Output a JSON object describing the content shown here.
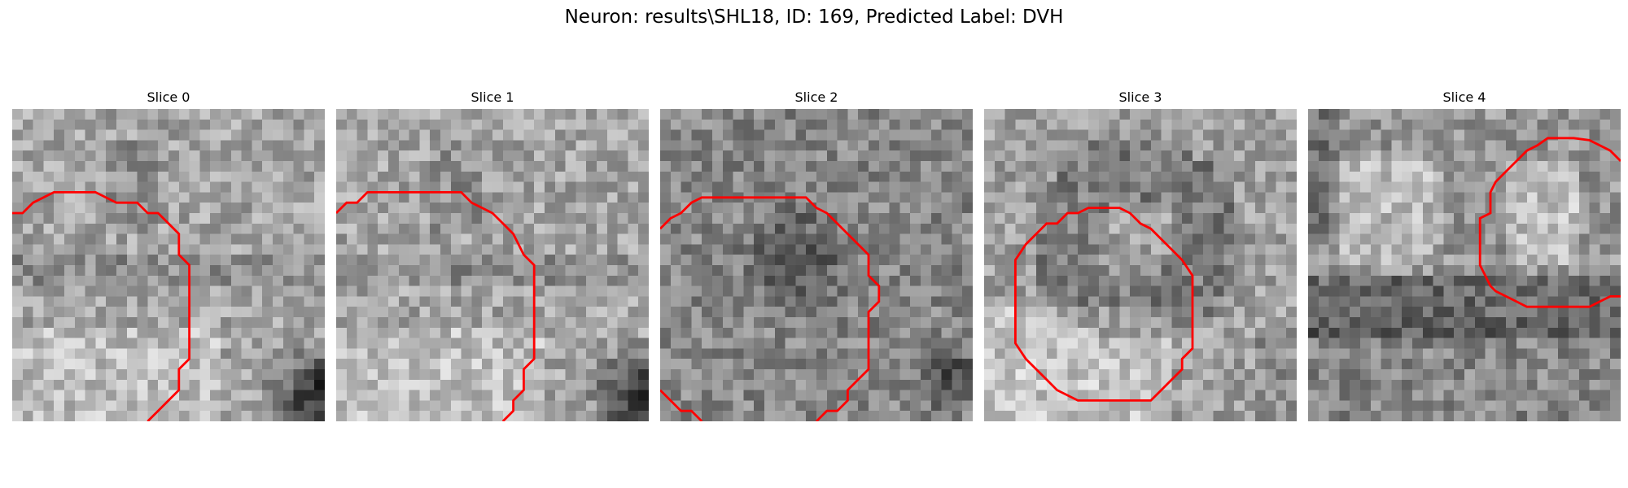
{
  "figure": {
    "title": "Neuron: results\\SHL18, ID: 169, Predicted Label: DVH"
  },
  "colors": {
    "contour": "#ff0000",
    "background": "#ffffff"
  },
  "panels": [
    {
      "title": "Slice 0",
      "dark_blob": "bottom-right",
      "contour": "left-arc"
    },
    {
      "title": "Slice 1",
      "dark_blob": "bottom-right",
      "contour": "left-arc"
    },
    {
      "title": "Slice 2",
      "dark_blob": "center",
      "contour": "left-arc"
    },
    {
      "title": "Slice 3",
      "dark_blob": "ring",
      "contour": "closed-octagon"
    },
    {
      "title": "Slice 4",
      "dark_blob": "band",
      "contour": "right-region"
    }
  ]
}
